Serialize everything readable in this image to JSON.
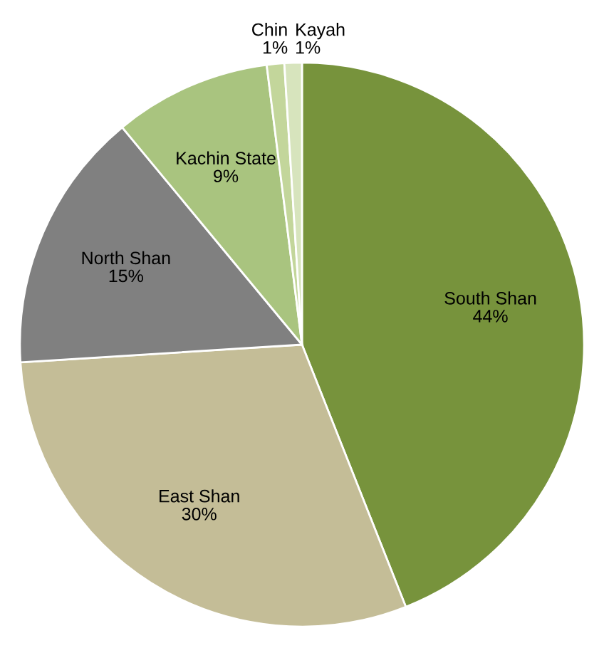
{
  "chart_data": {
    "type": "pie",
    "categories": [
      "South Shan",
      "East Shan",
      "North Shan",
      "Kachin State",
      "Chin",
      "Kayah"
    ],
    "values": [
      44,
      30,
      15,
      9,
      1,
      1
    ],
    "value_labels": [
      "44%",
      "30%",
      "15%",
      "9%",
      "1%",
      "1%"
    ],
    "colors": [
      "#77933c",
      "#c4bd97",
      "#808080",
      "#a9c47f",
      "#c3d69b",
      "#d7e4bd"
    ],
    "legend": false
  }
}
